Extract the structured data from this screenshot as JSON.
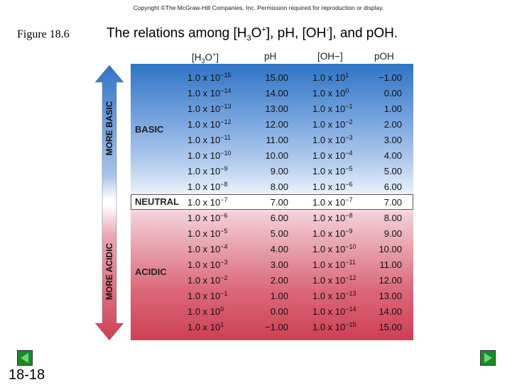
{
  "copyright": "Copyright ©The McGraw-Hill Companies, Inc.  Permission required for reproduction or display.",
  "figure_label": "Figure 18.6",
  "title": {
    "prefix": "The relations among [H",
    "sub3": "3",
    "mid": "O",
    "sup_plus": "+",
    "mid2": "], pH, [OH",
    "sup_minus": "-",
    "suffix": "], and pOH."
  },
  "headers": {
    "h3o": "[H3O+]",
    "ph": "pH",
    "oh": "[OH−]",
    "poh": "pOH"
  },
  "regions": {
    "basic": "BASIC",
    "neutral": "NEUTRAL",
    "acidic": "ACIDIC",
    "more_basic": "MORE BASIC",
    "more_acidic": "MORE ACIDIC"
  },
  "rows": [
    {
      "h_base": "1.0 x 10",
      "h_exp": "−15",
      "ph": "15.00",
      "oh_base": "1.0 x 10",
      "oh_exp": "1",
      "poh": "−1.00"
    },
    {
      "h_base": "1.0 x 10",
      "h_exp": "−14",
      "ph": "14.00",
      "oh_base": "1.0 x 10",
      "oh_exp": "0",
      "poh": "0.00"
    },
    {
      "h_base": "1.0 x 10",
      "h_exp": "−13",
      "ph": "13.00",
      "oh_base": "1.0 x 10",
      "oh_exp": "−1",
      "poh": "1.00"
    },
    {
      "h_base": "1.0 x 10",
      "h_exp": "−12",
      "ph": "12.00",
      "oh_base": "1.0 x 10",
      "oh_exp": "−2",
      "poh": "2.00"
    },
    {
      "h_base": "1.0 x 10",
      "h_exp": "−11",
      "ph": "11.00",
      "oh_base": "1.0 x 10",
      "oh_exp": "−3",
      "poh": "3.00"
    },
    {
      "h_base": "1.0 x 10",
      "h_exp": "−10",
      "ph": "10.00",
      "oh_base": "1.0 x 10",
      "oh_exp": "−4",
      "poh": "4.00"
    },
    {
      "h_base": "1.0 x 10",
      "h_exp": "−9",
      "ph": "9.00",
      "oh_base": "1.0 x 10",
      "oh_exp": "−5",
      "poh": "5.00"
    },
    {
      "h_base": "1.0 x 10",
      "h_exp": "−8",
      "ph": "8.00",
      "oh_base": "1.0 x 10",
      "oh_exp": "−6",
      "poh": "6.00"
    },
    {
      "h_base": "1.0 x 10",
      "h_exp": "−7",
      "ph": "7.00",
      "oh_base": "1.0 x 10",
      "oh_exp": "−7",
      "poh": "7.00"
    },
    {
      "h_base": "1.0 x 10",
      "h_exp": "−6",
      "ph": "6.00",
      "oh_base": "1.0 x 10",
      "oh_exp": "−8",
      "poh": "8.00"
    },
    {
      "h_base": "1.0 x 10",
      "h_exp": "−5",
      "ph": "5.00",
      "oh_base": "1.0 x 10",
      "oh_exp": "−9",
      "poh": "9.00"
    },
    {
      "h_base": "1.0 x 10",
      "h_exp": "−4",
      "ph": "4.00",
      "oh_base": "1.0 x 10",
      "oh_exp": "−10",
      "poh": "10.00"
    },
    {
      "h_base": "1.0 x 10",
      "h_exp": "−3",
      "ph": "3.00",
      "oh_base": "1.0 x 10",
      "oh_exp": "−11",
      "poh": "11.00"
    },
    {
      "h_base": "1.0 x 10",
      "h_exp": "−2",
      "ph": "2.00",
      "oh_base": "1.0 x 10",
      "oh_exp": "−12",
      "poh": "12.00"
    },
    {
      "h_base": "1.0 x 10",
      "h_exp": "−1",
      "ph": "1.00",
      "oh_base": "1.0 x 10",
      "oh_exp": "−13",
      "poh": "13.00"
    },
    {
      "h_base": "1.0 x 10",
      "h_exp": "0",
      "ph": "0.00",
      "oh_base": "1.0 x 10",
      "oh_exp": "−14",
      "poh": "14.00"
    },
    {
      "h_base": "1.0 x 10",
      "h_exp": "1",
      "ph": "−1.00",
      "oh_base": "1.0 x 10",
      "oh_exp": "−15",
      "poh": "15.00"
    }
  ],
  "nav": {
    "prev_icon": "left-arrow-icon",
    "next_icon": "right-arrow-icon"
  },
  "slide_number": "18-18",
  "colors": {
    "basic_blue": "#2f74c6",
    "acidic_red": "#cf3f53",
    "nav_green": "#1a8a2a"
  }
}
